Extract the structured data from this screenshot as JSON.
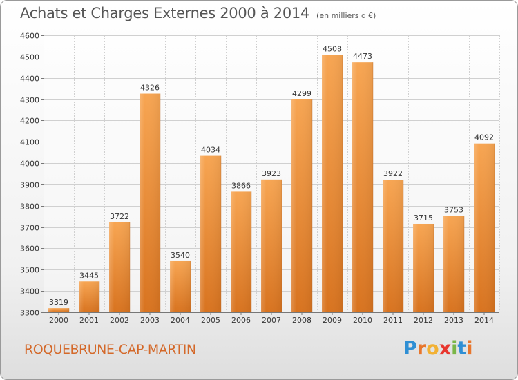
{
  "chart_title": "Achats et Charges Externes 2000 à 2014",
  "chart_subtitle": "(en milliers d'€)",
  "commune_name": "ROQUEBRUNE-CAP-MARTIN",
  "logo": {
    "letters": [
      "P",
      "r",
      "o",
      "x",
      "i",
      "t",
      "i"
    ],
    "colors": [
      "#2f8fd4",
      "#e8762c",
      "#f2b134",
      "#e8362e",
      "#7ab648",
      "#2f8fd4",
      "#e8762c"
    ]
  },
  "colors": {
    "bar": "#f0963c",
    "bar_light": "#f7aa55",
    "bar_dark": "#c9691c",
    "title": "#555555",
    "commune": "#d4692a"
  },
  "chart_data": {
    "type": "bar",
    "title": "Achats et Charges Externes 2000 à 2014",
    "subtitle": "(en milliers d'€)",
    "xlabel": "",
    "ylabel": "",
    "ylim": [
      3300,
      4600
    ],
    "yticks": [
      3300,
      3400,
      3500,
      3600,
      3700,
      3800,
      3900,
      4000,
      4100,
      4200,
      4300,
      4400,
      4500,
      4600
    ],
    "grid": true,
    "categories": [
      "2000",
      "2001",
      "2002",
      "2003",
      "2004",
      "2005",
      "2006",
      "2007",
      "2008",
      "2009",
      "2010",
      "2011",
      "2012",
      "2013",
      "2014"
    ],
    "values": [
      3319,
      3445,
      3722,
      4326,
      3540,
      4034,
      3866,
      3923,
      4299,
      4508,
      4473,
      3922,
      3715,
      3753,
      4092
    ]
  }
}
